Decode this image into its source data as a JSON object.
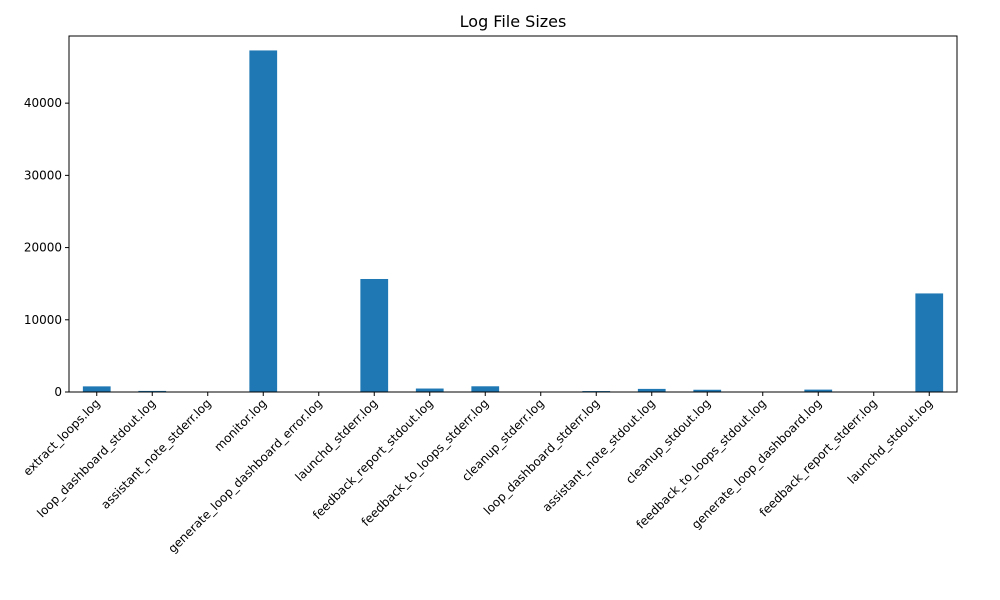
{
  "chart_data": {
    "type": "bar",
    "title": "Log File Sizes",
    "xlabel": "",
    "ylabel": "",
    "categories": [
      "extract_loops.log",
      "loop_dashboard_stdout.log",
      "assistant_note_stderr.log",
      "monitor.log",
      "generate_loop_dashboard_error.log",
      "launchd_stderr.log",
      "feedback_report_stdout.log",
      "feedback_to_loops_stderr.log",
      "cleanup_stderr.log",
      "loop_dashboard_stderr.log",
      "assistant_note_stdout.log",
      "cleanup_stdout.log",
      "feedback_to_loops_stdout.log",
      "generate_loop_dashboard.log",
      "feedback_report_stderr.log",
      "launchd_stdout.log"
    ],
    "values": [
      780,
      150,
      0,
      47300,
      0,
      15650,
      480,
      790,
      0,
      130,
      430,
      310,
      0,
      330,
      0,
      13650
    ],
    "ylim": [
      0,
      49300
    ],
    "yticks": [
      0,
      10000,
      20000,
      30000,
      40000
    ],
    "bar_color": "#1f77b4",
    "grid": false,
    "legend": "none"
  }
}
